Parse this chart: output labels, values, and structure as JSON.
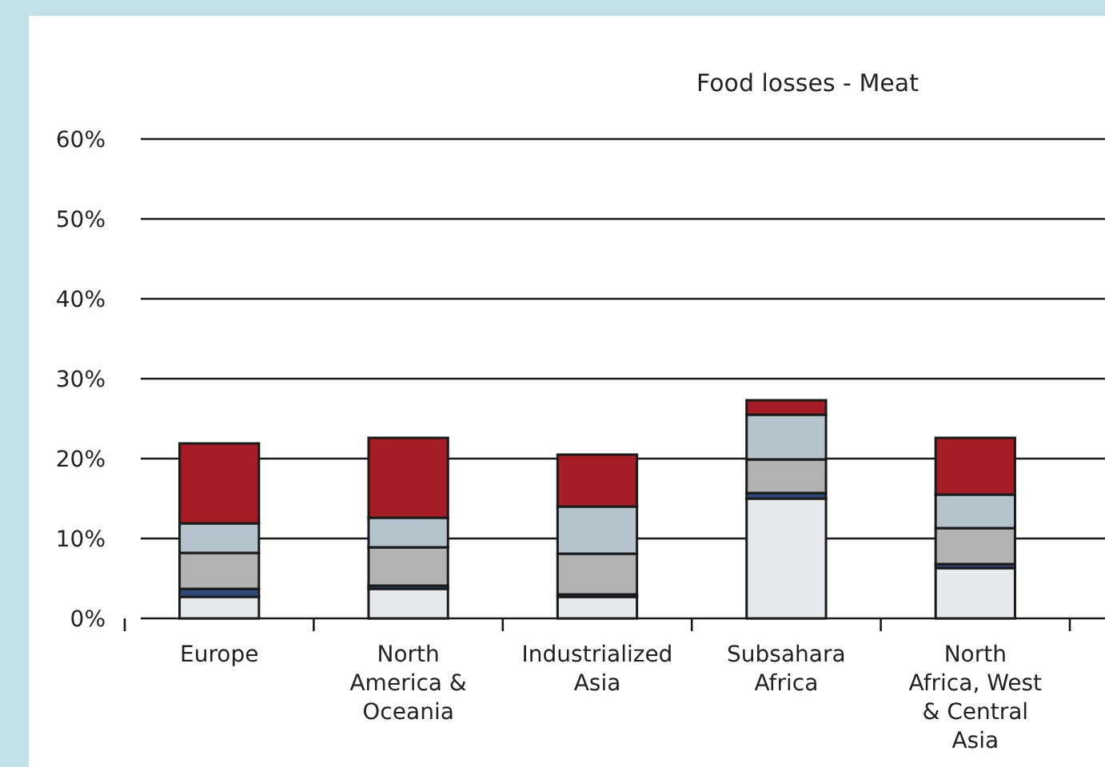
{
  "chart_data": {
    "type": "bar",
    "title": "Food losses - Meat",
    "stacked": true,
    "categories": [
      "Europe",
      "North America & Oceania",
      "Industrialized Asia",
      "Subsahara Africa",
      "North Africa, West & Central Asia"
    ],
    "series": [
      {
        "color": "#e6e9ee",
        "values": [
          2.7,
          3.7,
          2.7,
          15.0,
          6.3
        ]
      },
      {
        "color": "#2f4a78",
        "values": [
          1.0,
          0.4,
          0.3,
          0.7,
          0.5
        ]
      },
      {
        "color": "#b0b2b4",
        "values": [
          4.5,
          4.8,
          5.1,
          4.2,
          4.5
        ]
      },
      {
        "color": "#b5c4cc",
        "values": [
          3.7,
          3.7,
          5.9,
          5.6,
          4.2
        ]
      },
      {
        "color": "#a51c24",
        "values": [
          10.0,
          10.0,
          6.5,
          1.8,
          7.1
        ]
      }
    ],
    "ylim": [
      0,
      60
    ],
    "yticks": [
      {
        "value": 0,
        "label": "0%"
      },
      {
        "value": 10,
        "label": "10%"
      },
      {
        "value": 20,
        "label": "20%"
      },
      {
        "value": 30,
        "label": "30%"
      },
      {
        "value": 40,
        "label": "40%"
      },
      {
        "value": 50,
        "label": "50%"
      },
      {
        "value": 60,
        "label": "60%"
      }
    ],
    "grid": "y"
  }
}
